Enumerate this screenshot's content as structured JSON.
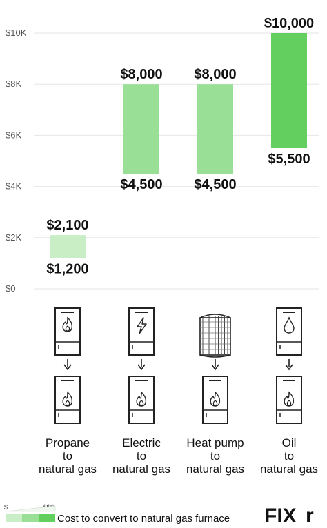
{
  "chart_data": {
    "type": "bar",
    "subtype": "floating-range",
    "y_ticks": [
      {
        "value": 0,
        "label": "$0"
      },
      {
        "value": 2000,
        "label": "$2K"
      },
      {
        "value": 4000,
        "label": "$4K"
      },
      {
        "value": 6000,
        "label": "$6K"
      },
      {
        "value": 8000,
        "label": "$8K"
      },
      {
        "value": 10000,
        "label": "$10K"
      }
    ],
    "ylim": [
      0,
      10000
    ],
    "grid": true,
    "categories": [
      {
        "lines": [
          "Propane",
          "to",
          "natural gas"
        ],
        "low": 1200,
        "high": 2100,
        "low_label": "$1,200",
        "high_label": "$2,100",
        "color": "#c9eec6",
        "from_icon": "flame-icon",
        "to_icon": "fire-icon"
      },
      {
        "lines": [
          "Electric",
          "to",
          "natural gas"
        ],
        "low": 4500,
        "high": 8000,
        "low_label": "$4,500",
        "high_label": "$8,000",
        "color": "#9adf96",
        "from_icon": "lightning-icon",
        "to_icon": "fire-icon"
      },
      {
        "lines": [
          "Heat pump",
          "to",
          "natural gas"
        ],
        "low": 4500,
        "high": 8000,
        "low_label": "$4,500",
        "high_label": "$8,000",
        "color": "#9adf96",
        "from_icon": "heat-pump-icon",
        "to_icon": "fire-icon"
      },
      {
        "lines": [
          "Oil",
          "to",
          "natural gas"
        ],
        "low": 5500,
        "high": 10000,
        "low_label": "$5,500",
        "high_label": "$10,000",
        "color": "#63cf5e",
        "from_icon": "oil-drop-icon",
        "to_icon": "fire-icon"
      }
    ],
    "legend": {
      "text": "Cost to convert to natural gas furnace",
      "low_symbol": "$",
      "high_symbol": "$$$",
      "colors": [
        "#c9eec6",
        "#9adf96",
        "#63cf5e"
      ]
    }
  },
  "brand": {
    "logo_text": "FIXr",
    "accent": "#63cf5e"
  }
}
